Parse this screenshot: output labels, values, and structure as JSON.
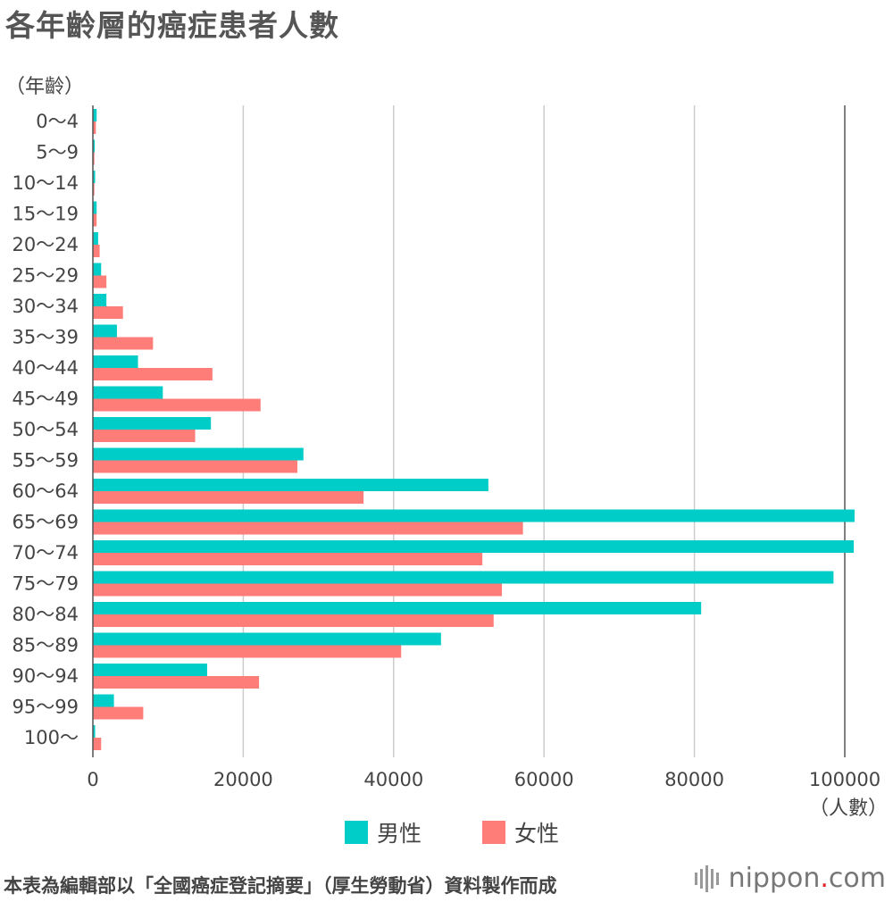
{
  "title": "各年齡層的癌症患者人數",
  "chart_data": {
    "type": "bar",
    "orientation": "horizontal",
    "ylabel": "（年齡）",
    "xlabel": "（人數）",
    "xlim": [
      0,
      100000
    ],
    "xticks": [
      0,
      20000,
      40000,
      60000,
      80000,
      100000
    ],
    "grid": true,
    "legend_position": "bottom",
    "categories": [
      "0〜4",
      "5〜9",
      "10〜14",
      "15〜19",
      "20〜24",
      "25〜29",
      "30〜34",
      "35〜39",
      "40〜44",
      "45〜49",
      "50〜54",
      "55〜59",
      "60〜64",
      "65〜69",
      "70〜74",
      "75〜79",
      "80〜84",
      "85〜89",
      "90〜94",
      "95〜99",
      "100〜"
    ],
    "series": [
      {
        "name": "男性",
        "color": "#00cdc8",
        "values": [
          500,
          250,
          300,
          500,
          700,
          1100,
          1800,
          3200,
          6000,
          9300,
          15700,
          28000,
          52600,
          101300,
          101200,
          98500,
          80900,
          46300,
          15200,
          2800,
          300
        ]
      },
      {
        "name": "女性",
        "color": "#ff7d79",
        "values": [
          400,
          200,
          200,
          500,
          900,
          1800,
          4000,
          8000,
          15900,
          22300,
          13600,
          27200,
          36000,
          57200,
          51800,
          54400,
          53300,
          41000,
          22100,
          6700,
          1100
        ]
      }
    ]
  },
  "footer": {
    "source": "本表為編輯部以「全國癌症登記摘要」（厚生勞動省）資料製作而成",
    "brand_name": "nippon",
    "brand_dot": ".",
    "brand_tld": "com"
  }
}
